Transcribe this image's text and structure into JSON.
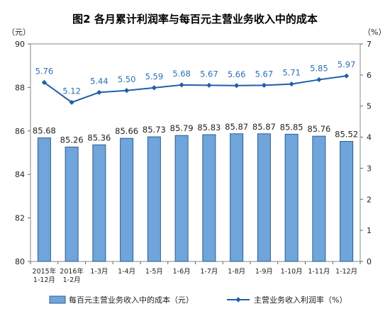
{
  "chart_data": {
    "type": "bar+line",
    "title": "图2  各月累计利润率与每百元主营业务收入中的成本",
    "y_left_unit": "（元）",
    "y_right_unit": "（%）",
    "y_left_lim": [
      80,
      90
    ],
    "y_left_ticks": [
      "80",
      "82",
      "84",
      "86",
      "88",
      "90"
    ],
    "y_right_lim": [
      0,
      7
    ],
    "y_right_ticks": [
      "0",
      "1",
      "2",
      "3",
      "4",
      "5",
      "6",
      "7"
    ],
    "categories": [
      [
        "2015年",
        "1-12月"
      ],
      [
        "2016年",
        "1-2月"
      ],
      [
        "1-3月"
      ],
      [
        "1-4月"
      ],
      [
        "1-5月"
      ],
      [
        "1-6月"
      ],
      [
        "1-7月"
      ],
      [
        "1-8月"
      ],
      [
        "1-9月"
      ],
      [
        "1-10月"
      ],
      [
        "1-11月"
      ],
      [
        "1-12月"
      ]
    ],
    "series": [
      {
        "name": "每百元主营业务收入中的成本（元）",
        "type": "bar",
        "axis": "left",
        "values": [
          85.68,
          85.26,
          85.36,
          85.66,
          85.73,
          85.79,
          85.83,
          85.87,
          85.87,
          85.85,
          85.76,
          85.52
        ],
        "labels": [
          "85.68",
          "85.26",
          "85.36",
          "85.66",
          "85.73",
          "85.79",
          "85.83",
          "85.87",
          "85.87",
          "85.85",
          "85.76",
          "85.52"
        ]
      },
      {
        "name": "主营业务收入利润率（%）",
        "type": "line",
        "axis": "right",
        "values": [
          5.76,
          5.12,
          5.44,
          5.5,
          5.59,
          5.68,
          5.67,
          5.66,
          5.67,
          5.71,
          5.85,
          5.97
        ],
        "labels": [
          "5.76",
          "5.12",
          "5.44",
          "5.50",
          "5.59",
          "5.68",
          "5.67",
          "5.66",
          "5.67",
          "5.71",
          "5.85",
          "5.97"
        ]
      }
    ],
    "colors": {
      "bar_fill": "#6fa5db",
      "bar_stroke": "#2d5d8f",
      "line": "#1f5fa8",
      "marker": "#1f5fa8"
    },
    "legend_position": "bottom"
  }
}
